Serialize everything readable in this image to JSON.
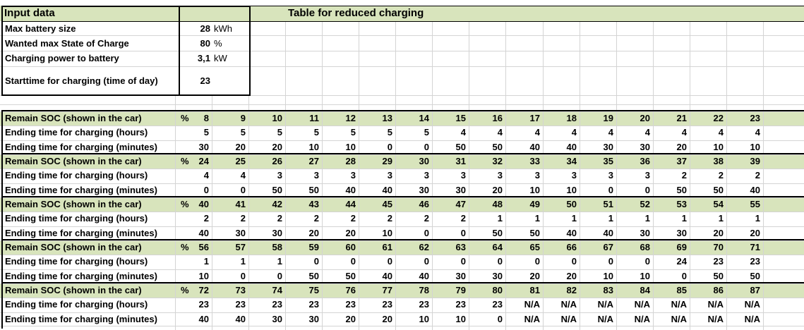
{
  "input_title": "Input data",
  "table_title": "Table for reduced charging",
  "inputs": [
    {
      "label": "Max battery size",
      "value": "28",
      "unit": "kWh"
    },
    {
      "label": "Wanted max State of Charge",
      "value": "80",
      "unit": "%"
    },
    {
      "label": "Charging power to battery",
      "value": "3,1",
      "unit": "kW"
    },
    {
      "label": "Starttime for charging (time of day)",
      "value": "23",
      "unit": ""
    }
  ],
  "row_labels": {
    "soc": "Remain SOC (shown in the car)",
    "hours": "Ending time for charging (hours)",
    "minutes": "Ending time for charging (minutes)"
  },
  "soc_unit": "%",
  "blocks": [
    {
      "soc": [
        "8",
        "9",
        "10",
        "11",
        "12",
        "13",
        "14",
        "15",
        "16",
        "17",
        "18",
        "19",
        "20",
        "21",
        "22",
        "23"
      ],
      "hours": [
        "5",
        "5",
        "5",
        "5",
        "5",
        "5",
        "5",
        "4",
        "4",
        "4",
        "4",
        "4",
        "4",
        "4",
        "4",
        "4"
      ],
      "minutes": [
        "30",
        "20",
        "20",
        "10",
        "10",
        "0",
        "0",
        "50",
        "50",
        "40",
        "40",
        "30",
        "30",
        "20",
        "10",
        "10"
      ]
    },
    {
      "soc": [
        "24",
        "25",
        "26",
        "27",
        "28",
        "29",
        "30",
        "31",
        "32",
        "33",
        "34",
        "35",
        "36",
        "37",
        "38",
        "39"
      ],
      "hours": [
        "4",
        "4",
        "3",
        "3",
        "3",
        "3",
        "3",
        "3",
        "3",
        "3",
        "3",
        "3",
        "3",
        "2",
        "2",
        "2"
      ],
      "minutes": [
        "0",
        "0",
        "50",
        "50",
        "40",
        "40",
        "30",
        "30",
        "20",
        "10",
        "10",
        "0",
        "0",
        "50",
        "50",
        "40"
      ]
    },
    {
      "soc": [
        "40",
        "41",
        "42",
        "43",
        "44",
        "45",
        "46",
        "47",
        "48",
        "49",
        "50",
        "51",
        "52",
        "53",
        "54",
        "55"
      ],
      "hours": [
        "2",
        "2",
        "2",
        "2",
        "2",
        "2",
        "2",
        "2",
        "1",
        "1",
        "1",
        "1",
        "1",
        "1",
        "1",
        "1"
      ],
      "minutes": [
        "40",
        "30",
        "30",
        "20",
        "20",
        "10",
        "0",
        "0",
        "50",
        "50",
        "40",
        "40",
        "30",
        "30",
        "20",
        "20"
      ]
    },
    {
      "soc": [
        "56",
        "57",
        "58",
        "59",
        "60",
        "61",
        "62",
        "63",
        "64",
        "65",
        "66",
        "67",
        "68",
        "69",
        "70",
        "71"
      ],
      "hours": [
        "1",
        "1",
        "1",
        "0",
        "0",
        "0",
        "0",
        "0",
        "0",
        "0",
        "0",
        "0",
        "0",
        "24",
        "23",
        "23"
      ],
      "minutes": [
        "10",
        "0",
        "0",
        "50",
        "50",
        "40",
        "40",
        "30",
        "30",
        "20",
        "20",
        "10",
        "10",
        "0",
        "50",
        "50"
      ]
    },
    {
      "soc": [
        "72",
        "73",
        "74",
        "75",
        "76",
        "77",
        "78",
        "79",
        "80",
        "81",
        "82",
        "83",
        "84",
        "85",
        "86",
        "87"
      ],
      "hours": [
        "23",
        "23",
        "23",
        "23",
        "23",
        "23",
        "23",
        "23",
        "23",
        "N/A",
        "N/A",
        "N/A",
        "N/A",
        "N/A",
        "N/A",
        "N/A"
      ],
      "minutes": [
        "40",
        "40",
        "30",
        "30",
        "20",
        "20",
        "10",
        "10",
        "0",
        "N/A",
        "N/A",
        "N/A",
        "N/A",
        "N/A",
        "N/A",
        "N/A"
      ]
    }
  ],
  "colors": {
    "header_fill": "#d8e4bc",
    "soc_row_fill": "#d8e4bc",
    "gridline": "#d4d4d4",
    "border": "#000000"
  }
}
